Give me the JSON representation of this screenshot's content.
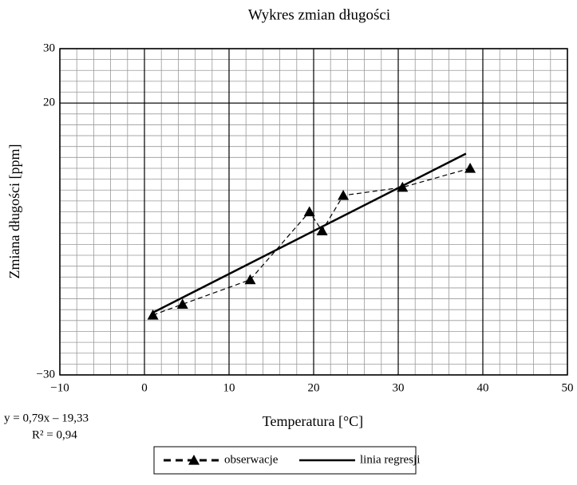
{
  "chart_data": {
    "type": "line",
    "title": "Wykres zmian długości",
    "x_label": "Temperatura [°C]",
    "y_label": "Zmiana długości [ppm]",
    "annotations": [
      "y = 0,79x – 19,33",
      "R² = 0,94"
    ],
    "xlim": [
      -10,
      50
    ],
    "xticks": [
      {
        "value": -10,
        "label": "−10"
      },
      0,
      10,
      20,
      30,
      40,
      50
    ],
    "ylim": [
      -30,
      30
    ],
    "yticks": [
      {
        "value": -30,
        "label": "−30"
      },
      20,
      30
    ],
    "grid": true,
    "legend": "bottom",
    "series": [
      {
        "name": "obserwacje",
        "color": "#000000",
        "style": "dashed",
        "marker": "triangle",
        "x": [
          1,
          4.5,
          12.5,
          19.5,
          21,
          23.5,
          30.5,
          38.5
        ],
        "values": [
          -19,
          -17,
          -12.5,
          0,
          -3.5,
          3,
          4.5,
          8
        ]
      },
      {
        "name": "linia regresji",
        "color": "#000000",
        "style": "solid",
        "x": [
          1,
          38
        ],
        "values": [
          -18.54,
          10.69
        ]
      }
    ]
  }
}
